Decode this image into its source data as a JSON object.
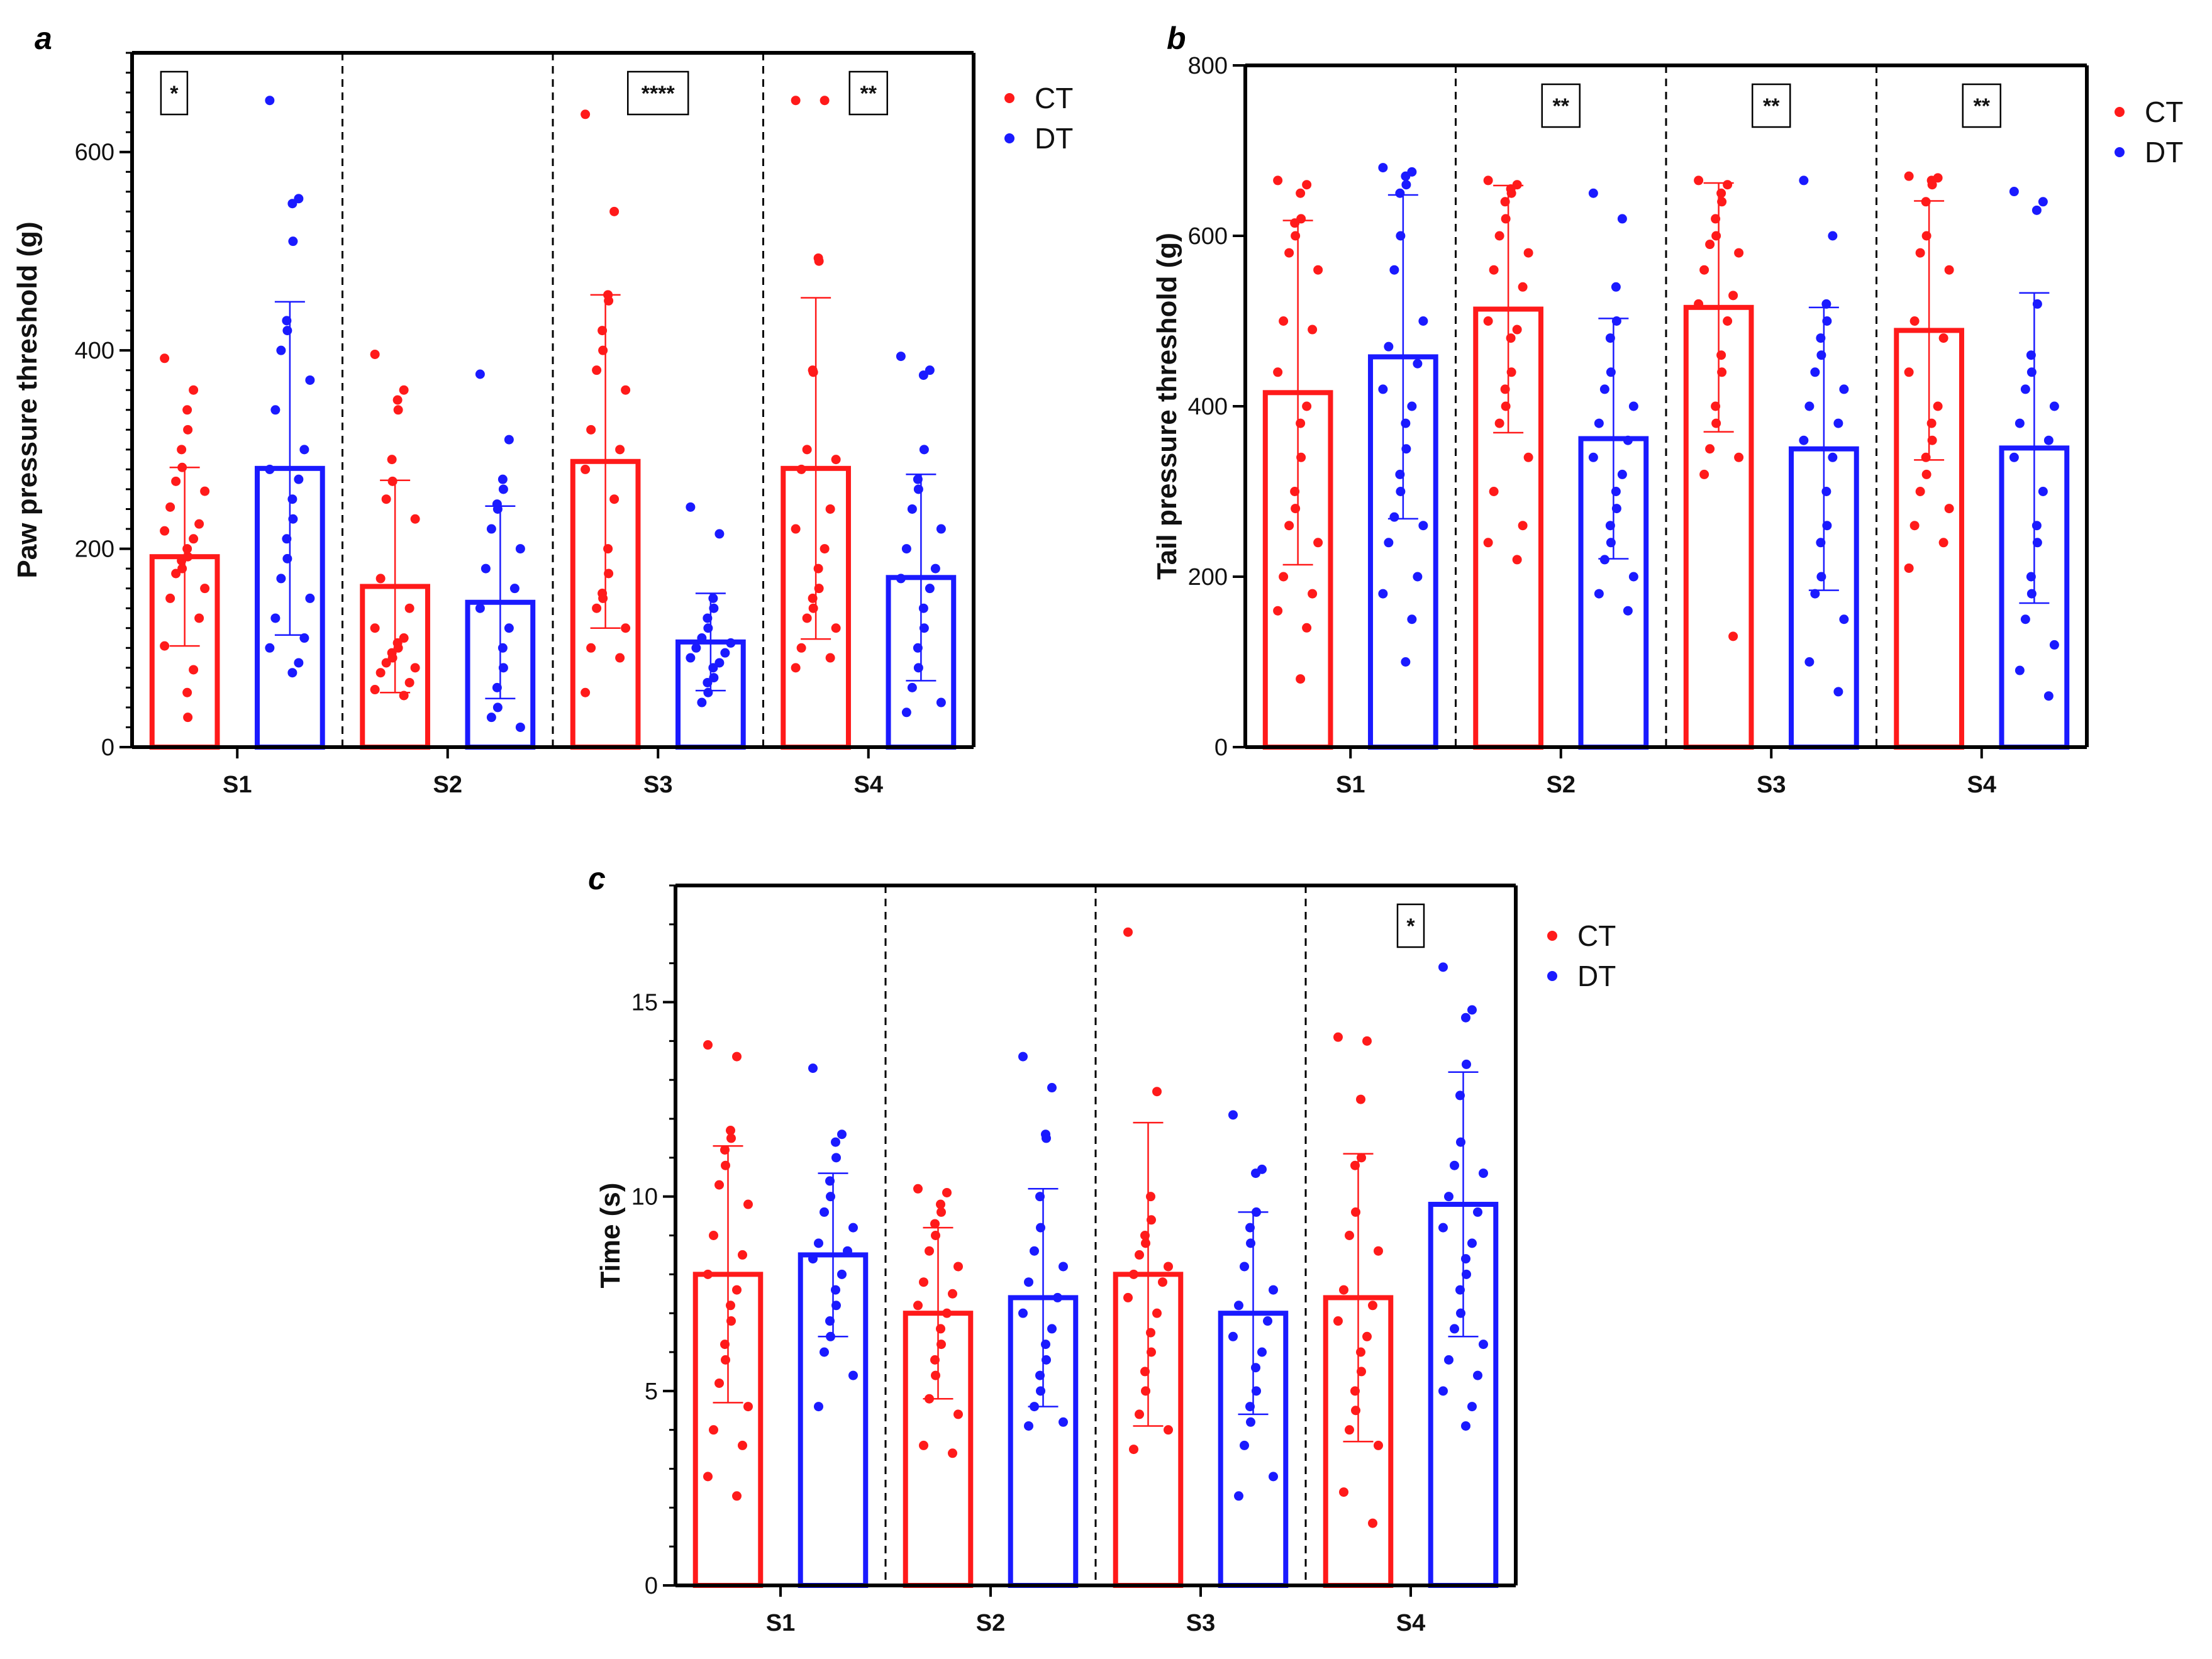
{
  "colors": {
    "CT": "#ff1a1a",
    "DT": "#1a1aff",
    "axis": "#000000"
  },
  "chart_data": [
    {
      "panel": "a",
      "type": "bar",
      "categories": [
        "S1",
        "S2",
        "S3",
        "S4"
      ],
      "ylabel": "Paw pressure threshold (g)",
      "ylim": [
        0,
        700
      ],
      "yticks": [
        0,
        200,
        400,
        600
      ],
      "legend": [
        "CT",
        "DT"
      ],
      "significance": [
        "*",
        "",
        "****",
        "**"
      ],
      "series": [
        {
          "name": "CT",
          "means": [
            192,
            162,
            288,
            281
          ],
          "sd": [
            90,
            107,
            168,
            172
          ],
          "points": [
            [
              392,
              360,
              340,
              320,
              300,
              282,
              268,
              258,
              242,
              225,
              218,
              210,
              200,
              192,
              188,
              180,
              175,
              160,
              150,
              130,
              102,
              78,
              55,
              30
            ],
            [
              396,
              360,
              350,
              340,
              290,
              268,
              250,
              230,
              170,
              140,
              120,
              110,
              105,
              100,
              95,
              90,
              85,
              80,
              75,
              65,
              58,
              52
            ],
            [
              638,
              540,
              456,
              450,
              420,
              400,
              380,
              360,
              320,
              300,
              280,
              250,
              200,
              175,
              155,
              150,
              140,
              120,
              100,
              90,
              55
            ],
            [
              652,
              652,
              493,
              490,
              380,
              378,
              300,
              290,
              280,
              240,
              220,
              200,
              180,
              160,
              150,
              140,
              130,
              120,
              100,
              90,
              80
            ]
          ]
        },
        {
          "name": "DT",
          "means": [
            281,
            146,
            106,
            171
          ],
          "sd": [
            168,
            97,
            49,
            104
          ],
          "points": [
            [
              652,
              553,
              548,
              510,
              430,
              420,
              400,
              370,
              340,
              300,
              280,
              270,
              250,
              230,
              210,
              190,
              170,
              150,
              130,
              110,
              100,
              85,
              75
            ],
            [
              376,
              310,
              270,
              260,
              245,
              240,
              220,
              200,
              180,
              160,
              140,
              120,
              100,
              80,
              60,
              40,
              30,
              20
            ],
            [
              242,
              215,
              150,
              140,
              130,
              120,
              110,
              105,
              100,
              95,
              90,
              85,
              80,
              70,
              65,
              55,
              45
            ],
            [
              394,
              380,
              375,
              300,
              270,
              260,
              240,
              220,
              200,
              180,
              170,
              160,
              140,
              120,
              100,
              80,
              60,
              45,
              35
            ]
          ]
        }
      ]
    },
    {
      "panel": "b",
      "type": "bar",
      "categories": [
        "S1",
        "S2",
        "S3",
        "S4"
      ],
      "ylabel": "Tail pressure threshold (g)",
      "ylim": [
        0,
        800
      ],
      "yticks": [
        0,
        200,
        400,
        600,
        800
      ],
      "legend": [
        "CT",
        "DT"
      ],
      "significance": [
        "",
        "**",
        "**",
        "**"
      ],
      "series": [
        {
          "name": "CT",
          "means": [
            416,
            514,
            516,
            489
          ],
          "sd": [
            202,
            145,
            146,
            152
          ],
          "points": [
            [
              665,
              660,
              650,
              620,
              615,
              600,
              580,
              560,
              500,
              490,
              440,
              400,
              380,
              340,
              300,
              280,
              260,
              240,
              200,
              180,
              160,
              140,
              80
            ],
            [
              665,
              660,
              655,
              650,
              640,
              620,
              600,
              580,
              560,
              540,
              500,
              490,
              480,
              440,
              420,
              400,
              380,
              340,
              300,
              260,
              240,
              220
            ],
            [
              665,
              660,
              650,
              640,
              620,
              600,
              590,
              580,
              560,
              530,
              520,
              500,
              460,
              440,
              400,
              380,
              350,
              340,
              320,
              130
            ],
            [
              670,
              668,
              665,
              660,
              640,
              600,
              580,
              560,
              500,
              480,
              440,
              400,
              380,
              360,
              340,
              320,
              300,
              280,
              260,
              240,
              210
            ]
          ]
        },
        {
          "name": "DT",
          "means": [
            458,
            362,
            350,
            351
          ],
          "sd": [
            190,
            141,
            166,
            182
          ],
          "points": [
            [
              680,
              675,
              670,
              660,
              650,
              600,
              560,
              500,
              470,
              450,
              420,
              400,
              380,
              350,
              320,
              300,
              270,
              260,
              240,
              200,
              180,
              150,
              100
            ],
            [
              650,
              620,
              540,
              500,
              480,
              440,
              420,
              400,
              380,
              360,
              340,
              320,
              300,
              280,
              260,
              240,
              220,
              200,
              180,
              160
            ],
            [
              665,
              600,
              520,
              500,
              480,
              460,
              440,
              420,
              400,
              380,
              360,
              340,
              300,
              260,
              240,
              200,
              180,
              150,
              100,
              65
            ],
            [
              652,
              640,
              630,
              520,
              460,
              440,
              420,
              400,
              380,
              360,
              340,
              300,
              260,
              240,
              200,
              180,
              150,
              120,
              90,
              60
            ]
          ]
        }
      ]
    },
    {
      "panel": "c",
      "type": "bar",
      "categories": [
        "S1",
        "S2",
        "S3",
        "S4"
      ],
      "ylabel": "Time (s)",
      "ylim": [
        0,
        18
      ],
      "yticks": [
        0,
        5,
        10,
        15
      ],
      "legend": [
        "CT",
        "DT"
      ],
      "significance": [
        "",
        "",
        "",
        "*"
      ],
      "series": [
        {
          "name": "CT",
          "means": [
            8.0,
            7.0,
            8.0,
            7.4
          ],
          "sd": [
            3.3,
            2.2,
            3.9,
            3.7
          ],
          "points": [
            [
              13.9,
              13.6,
              11.7,
              11.5,
              11.2,
              10.8,
              10.3,
              9.8,
              9.0,
              8.5,
              8.0,
              7.6,
              7.2,
              6.8,
              6.2,
              5.8,
              5.2,
              4.6,
              4.0,
              3.6,
              2.8,
              2.3
            ],
            [
              10.2,
              10.1,
              9.8,
              9.6,
              9.3,
              9.0,
              8.6,
              8.2,
              7.8,
              7.5,
              7.2,
              7.0,
              6.6,
              6.2,
              5.8,
              5.4,
              4.8,
              4.4,
              3.6,
              3.4
            ],
            [
              16.8,
              12.7,
              10.0,
              9.4,
              9.0,
              8.8,
              8.5,
              8.2,
              8.0,
              7.8,
              7.4,
              7.0,
              6.5,
              6.0,
              5.5,
              5.0,
              4.4,
              4.0,
              3.5
            ],
            [
              14.1,
              14.0,
              12.5,
              11.0,
              10.8,
              9.6,
              9.0,
              8.6,
              7.6,
              7.2,
              6.8,
              6.4,
              6.0,
              5.5,
              5.0,
              4.5,
              4.0,
              3.6,
              2.4,
              1.6
            ]
          ]
        },
        {
          "name": "DT",
          "means": [
            8.5,
            7.4,
            7.0,
            9.8
          ],
          "sd": [
            2.1,
            2.8,
            2.6,
            3.4
          ],
          "points": [
            [
              13.3,
              11.6,
              11.4,
              11.0,
              10.4,
              10.0,
              9.6,
              9.2,
              8.8,
              8.6,
              8.4,
              8.0,
              7.6,
              7.2,
              6.8,
              6.4,
              6.0,
              5.4,
              4.6
            ],
            [
              13.6,
              12.8,
              11.6,
              11.5,
              10.0,
              9.2,
              8.6,
              8.2,
              7.8,
              7.4,
              7.0,
              6.6,
              6.2,
              5.8,
              5.4,
              5.0,
              4.6,
              4.2,
              4.1
            ],
            [
              12.1,
              10.7,
              10.6,
              9.6,
              9.2,
              8.8,
              8.2,
              7.6,
              7.2,
              6.8,
              6.4,
              6.0,
              5.6,
              5.0,
              4.6,
              4.2,
              3.6,
              2.8,
              2.3
            ],
            [
              15.9,
              14.8,
              14.6,
              13.4,
              12.6,
              11.4,
              10.8,
              10.6,
              10.0,
              9.6,
              9.2,
              8.8,
              8.4,
              8.0,
              7.6,
              7.0,
              6.6,
              6.2,
              5.8,
              5.4,
              5.0,
              4.6,
              4.1
            ]
          ]
        }
      ]
    }
  ]
}
